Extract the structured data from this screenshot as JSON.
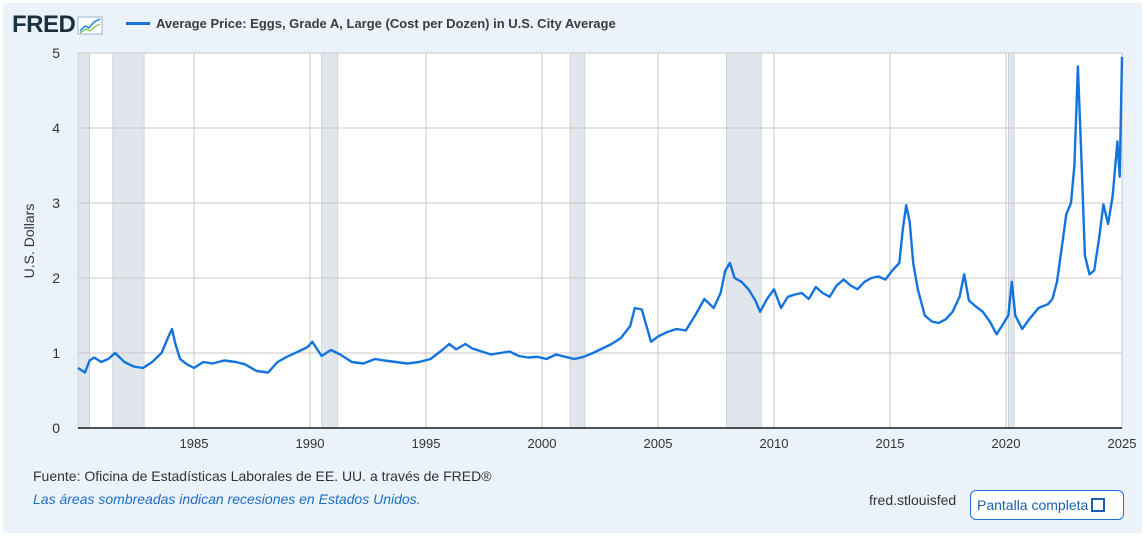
{
  "header": {
    "logo_text": "FRED",
    "legend_label": "Average Price: Eggs, Grade A, Large (Cost per Dozen) in U.S. City Average",
    "series_color": "#1474de"
  },
  "footer": {
    "source": "Fuente: Oficina de Estadísticas Laborales de EE. UU. a través de FRED®",
    "note": "Las áreas sombreadas indican recesiones en Estados Unidos.",
    "url": "fred.stlouisfed",
    "fullscreen_label": "Pantalla completa"
  },
  "chart_data": {
    "type": "line",
    "title": "",
    "ylabel": "U.S. Dollars",
    "xlabel": "",
    "xlim": [
      1980.0,
      2025.0
    ],
    "ylim": [
      0,
      5
    ],
    "x_ticks": [
      "1985",
      "1990",
      "1995",
      "2000",
      "2005",
      "2010",
      "2015",
      "2020",
      "2025"
    ],
    "y_ticks": [
      "0",
      "1",
      "2",
      "3",
      "4",
      "5"
    ],
    "grid": true,
    "recessions": [
      [
        1980.0,
        1980.5
      ],
      [
        1981.5,
        1982.85
      ],
      [
        1990.5,
        1991.2
      ],
      [
        2001.2,
        2001.85
      ],
      [
        2007.95,
        2009.45
      ],
      [
        2020.1,
        2020.35
      ]
    ],
    "series": [
      {
        "name": "Average Price: Eggs, Grade A, Large (Cost per Dozen) in U.S. City Average",
        "x": [
          1980.0,
          1980.3,
          1980.5,
          1980.7,
          1981.0,
          1981.3,
          1981.6,
          1982.0,
          1982.4,
          1982.8,
          1983.2,
          1983.6,
          1983.9,
          1984.05,
          1984.2,
          1984.4,
          1984.7,
          1985.0,
          1985.4,
          1985.8,
          1986.3,
          1986.8,
          1987.2,
          1987.7,
          1988.2,
          1988.6,
          1989.0,
          1989.5,
          1989.9,
          1990.1,
          1990.5,
          1990.9,
          1991.3,
          1991.8,
          1992.3,
          1992.8,
          1993.2,
          1993.7,
          1994.2,
          1994.7,
          1995.2,
          1995.7,
          1996.0,
          1996.3,
          1996.7,
          1997.0,
          1997.4,
          1997.8,
          1998.2,
          1998.6,
          1999.0,
          1999.4,
          1999.8,
          2000.2,
          2000.6,
          2001.0,
          2001.4,
          2001.8,
          2002.2,
          2002.6,
          2003.0,
          2003.4,
          2003.8,
          2004.0,
          2004.3,
          2004.7,
          2005.0,
          2005.4,
          2005.8,
          2006.2,
          2006.6,
          2007.0,
          2007.4,
          2007.7,
          2007.9,
          2008.1,
          2008.3,
          2008.6,
          2008.9,
          2009.2,
          2009.4,
          2009.7,
          2010.0,
          2010.3,
          2010.6,
          2010.9,
          2011.2,
          2011.5,
          2011.8,
          2012.1,
          2012.4,
          2012.7,
          2013.0,
          2013.3,
          2013.6,
          2013.9,
          2014.2,
          2014.5,
          2014.8,
          2015.1,
          2015.4,
          2015.55,
          2015.7,
          2015.85,
          2016.0,
          2016.2,
          2016.5,
          2016.8,
          2017.1,
          2017.4,
          2017.7,
          2018.0,
          2018.2,
          2018.4,
          2018.7,
          2019.0,
          2019.3,
          2019.6,
          2019.9,
          2020.1,
          2020.25,
          2020.4,
          2020.7,
          2021.0,
          2021.4,
          2021.8,
          2022.0,
          2022.2,
          2022.4,
          2022.6,
          2022.8,
          2022.95,
          2023.1,
          2023.25,
          2023.4,
          2023.6,
          2023.8,
          2024.0,
          2024.2,
          2024.4,
          2024.6,
          2024.8,
          2024.9,
          2025.0
        ],
        "values": [
          0.8,
          0.74,
          0.9,
          0.94,
          0.88,
          0.92,
          1.0,
          0.88,
          0.82,
          0.8,
          0.88,
          1.0,
          1.22,
          1.32,
          1.12,
          0.92,
          0.85,
          0.8,
          0.88,
          0.86,
          0.9,
          0.88,
          0.85,
          0.76,
          0.74,
          0.88,
          0.95,
          1.02,
          1.08,
          1.15,
          0.96,
          1.04,
          0.98,
          0.88,
          0.86,
          0.92,
          0.9,
          0.88,
          0.86,
          0.88,
          0.92,
          1.04,
          1.12,
          1.05,
          1.12,
          1.06,
          1.02,
          0.98,
          1.0,
          1.02,
          0.96,
          0.94,
          0.95,
          0.92,
          0.98,
          0.95,
          0.92,
          0.95,
          1.0,
          1.06,
          1.12,
          1.2,
          1.36,
          1.6,
          1.58,
          1.15,
          1.22,
          1.28,
          1.32,
          1.3,
          1.5,
          1.72,
          1.6,
          1.8,
          2.1,
          2.2,
          2.0,
          1.95,
          1.85,
          1.7,
          1.55,
          1.72,
          1.85,
          1.6,
          1.75,
          1.78,
          1.8,
          1.72,
          1.88,
          1.8,
          1.75,
          1.9,
          1.98,
          1.9,
          1.85,
          1.95,
          2.0,
          2.02,
          1.98,
          2.1,
          2.2,
          2.65,
          2.97,
          2.75,
          2.2,
          1.85,
          1.5,
          1.42,
          1.4,
          1.45,
          1.55,
          1.75,
          2.05,
          1.7,
          1.62,
          1.55,
          1.42,
          1.25,
          1.4,
          1.5,
          1.95,
          1.5,
          1.32,
          1.45,
          1.6,
          1.65,
          1.72,
          1.95,
          2.4,
          2.85,
          3.0,
          3.5,
          4.82,
          3.6,
          2.3,
          2.05,
          2.1,
          2.5,
          2.98,
          2.72,
          3.1,
          3.82,
          3.35,
          4.95
        ]
      }
    ]
  }
}
